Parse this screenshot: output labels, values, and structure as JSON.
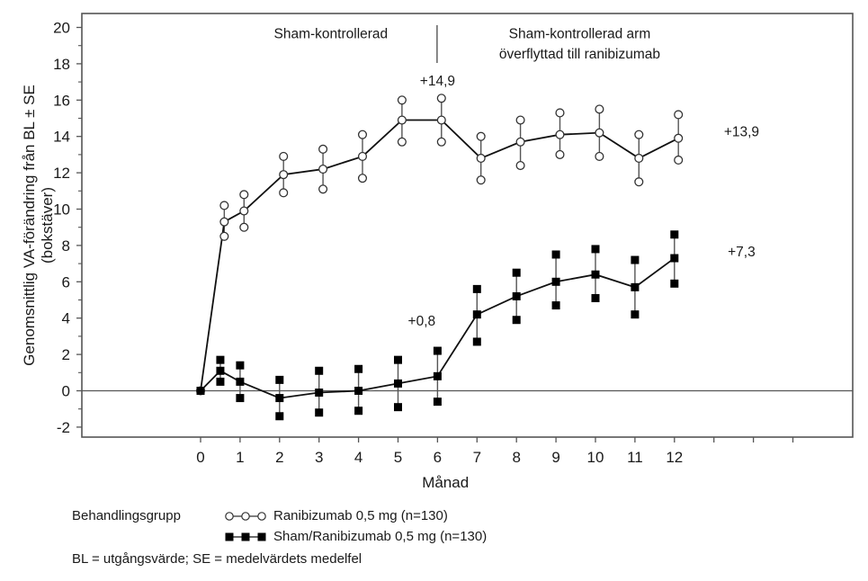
{
  "chart_data": {
    "type": "line",
    "title": "",
    "xlabel": "Månad",
    "ylabel": "Genomsnittlig VA-förändring från BL ± SE",
    "ylabel_line2": "(bokstäver)",
    "xlim": [
      -3,
      16
    ],
    "ylim": [
      -2.6,
      20.5
    ],
    "x_ticks": [
      0,
      1,
      2,
      3,
      4,
      5,
      6,
      7,
      8,
      9,
      10,
      11,
      12,
      13,
      14,
      15
    ],
    "x_tick_labels": [
      "0",
      "1",
      "2",
      "3",
      "4",
      "5",
      "6",
      "7",
      "8",
      "9",
      "10",
      "11",
      "12",
      "",
      "",
      ""
    ],
    "y_ticks": [
      -2,
      0,
      2,
      4,
      6,
      8,
      10,
      12,
      14,
      16,
      18,
      20
    ],
    "y_tick_labels": [
      "-2",
      "0",
      "2",
      "4",
      "6",
      "8",
      "10",
      "12",
      "14",
      "16",
      "18",
      "20"
    ],
    "y_minor_ticks": [
      -1,
      1,
      3,
      5,
      7,
      9,
      11,
      13,
      15,
      17,
      19
    ],
    "grid": false,
    "reference_line_y": 0,
    "phase_divider_x": 6,
    "series": [
      {
        "name": "Ranibizumab 0,5 mg (n=130)",
        "marker": "open-circle",
        "x": [
          0,
          0.6,
          1.1,
          2.1,
          3.1,
          4.1,
          5.1,
          6.1,
          7.1,
          8.1,
          9.1,
          10.1,
          11.1,
          12.1
        ],
        "values": [
          0,
          9.3,
          9.9,
          11.9,
          12.2,
          12.9,
          14.9,
          14.9,
          12.8,
          13.7,
          14.1,
          14.2,
          12.8,
          13.9
        ],
        "upper": [
          null,
          10.2,
          10.8,
          12.9,
          13.3,
          14.1,
          16.0,
          16.1,
          14.0,
          14.9,
          15.3,
          15.5,
          14.1,
          15.2
        ],
        "lower": [
          null,
          8.5,
          9.0,
          10.9,
          11.1,
          11.7,
          13.7,
          13.7,
          11.6,
          12.4,
          13.0,
          12.9,
          11.5,
          12.7
        ]
      },
      {
        "name": "Sham/Ranibizumab 0,5 mg (n=130)",
        "marker": "filled-square",
        "x": [
          0,
          0.5,
          1,
          2,
          3,
          4,
          5,
          6,
          7,
          8,
          9,
          10,
          11,
          12
        ],
        "values": [
          0,
          1.1,
          0.5,
          -0.4,
          -0.1,
          0.0,
          0.4,
          0.8,
          4.2,
          5.2,
          6.0,
          6.4,
          5.7,
          7.3
        ],
        "upper": [
          null,
          1.7,
          1.4,
          0.6,
          1.1,
          1.2,
          1.7,
          2.2,
          5.6,
          6.5,
          7.5,
          7.8,
          7.2,
          8.6
        ],
        "lower": [
          null,
          0.5,
          -0.4,
          -1.4,
          -1.2,
          -1.1,
          -0.9,
          -0.6,
          2.7,
          3.9,
          4.7,
          5.1,
          4.2,
          5.9
        ]
      }
    ],
    "annotations": [
      {
        "text": "Sham-kontrollerad",
        "x": 3.3,
        "y": 19.4
      },
      {
        "text": "Sham-kontrollerad arm",
        "x": 9.6,
        "y": 19.4
      },
      {
        "text": "överflyttad till ranibizumab",
        "x": 9.6,
        "y": 18.3
      },
      {
        "text": "+14,9",
        "x": 6,
        "y": 16.8
      },
      {
        "text": "+13,9",
        "x": 13.7,
        "y": 14.0
      },
      {
        "text": "+7,3",
        "x": 13.7,
        "y": 7.4
      },
      {
        "text": "+0,8",
        "x": 5.6,
        "y": 3.6
      }
    ],
    "legend": {
      "title": "Behandlingsgrupp",
      "placement": "bottom-left",
      "entries": [
        {
          "label": "Ranibizumab 0,5 mg (n=130)",
          "marker": "open-circle"
        },
        {
          "label": "Sham/Ranibizumab 0,5 mg (n=130)",
          "marker": "filled-square"
        }
      ]
    },
    "footnote": "BL = utgångsvärde; SE = medelvärdets medelfel"
  },
  "colors": {
    "line": "#111111",
    "errorbar": "#555555",
    "axis": "#555555",
    "marker_fill_open": "#ffffff",
    "marker_fill_solid": "#000000"
  }
}
